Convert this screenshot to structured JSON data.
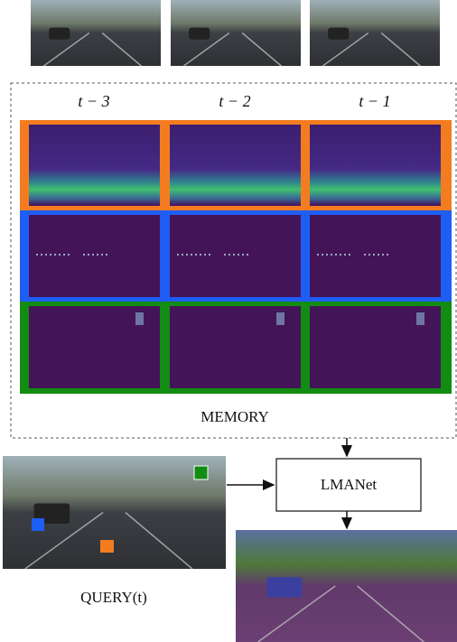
{
  "memory": {
    "time_labels": [
      "t − 3",
      "t − 2",
      "t − 1"
    ],
    "label": "MEMORY"
  },
  "model": {
    "label": "LMANet"
  },
  "query": {
    "label": "QUERY(t)"
  }
}
